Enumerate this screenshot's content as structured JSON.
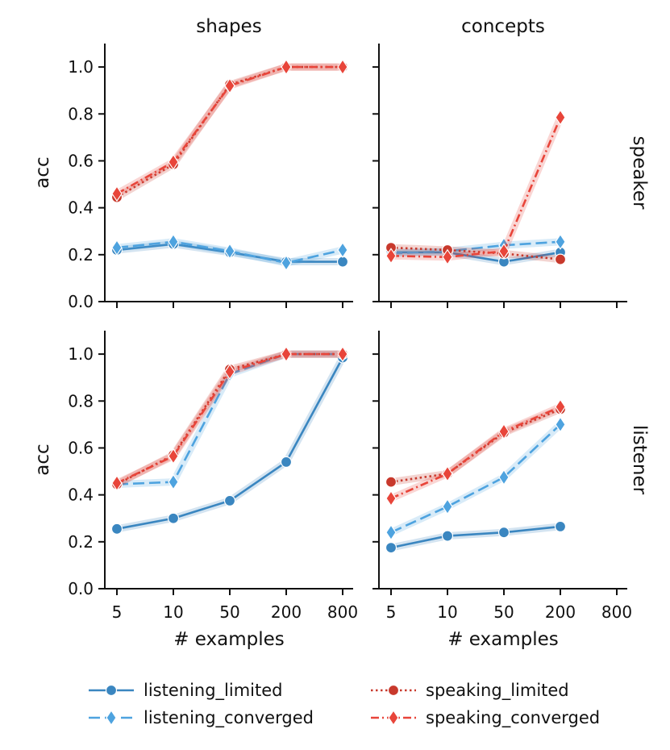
{
  "chart_data": {
    "type": "line",
    "x_scale": "categorical-log",
    "x_ticks": [
      "5",
      "10",
      "50",
      "200",
      "800"
    ],
    "y_ticks": [
      "0.0",
      "0.2",
      "0.4",
      "0.6",
      "0.8",
      "1.0"
    ],
    "ylim": [
      0.0,
      1.1
    ],
    "columns": [
      "shapes",
      "concepts"
    ],
    "rows": [
      "speaker",
      "listener"
    ],
    "xlabel": "# examples",
    "ylabel": "acc",
    "legend": {
      "position": "bottom-center",
      "entries": [
        {
          "series": "listening_limited",
          "label": "listening_limited"
        },
        {
          "series": "listening_converged",
          "label": "listening_converged"
        },
        {
          "series": "speaking_limited",
          "label": "speaking_limited"
        },
        {
          "series": "speaking_converged",
          "label": "speaking_converged"
        }
      ]
    },
    "series_styles": {
      "listening_limited": {
        "color": "#3a86c0",
        "dash": "solid",
        "marker": "circle"
      },
      "listening_converged": {
        "color": "#4ea3df",
        "dash": "dash",
        "marker": "diamond"
      },
      "speaking_limited": {
        "color": "#c8392c",
        "dash": "dot",
        "marker": "circle"
      },
      "speaking_converged": {
        "color": "#e8453a",
        "dash": "dashdot",
        "marker": "diamond"
      }
    },
    "panels": [
      {
        "row": "speaker",
        "column": "shapes",
        "series": [
          {
            "name": "listening_limited",
            "x": [
              "5",
              "10",
              "50",
              "200",
              "800"
            ],
            "values": [
              0.22,
              0.245,
              0.21,
              0.17,
              0.17
            ]
          },
          {
            "name": "listening_converged",
            "x": [
              "5",
              "10",
              "50",
              "200",
              "800"
            ],
            "values": [
              0.23,
              0.255,
              0.215,
              0.165,
              0.22
            ]
          },
          {
            "name": "speaking_limited",
            "x": [
              "5",
              "10",
              "50",
              "200",
              "800"
            ],
            "values": [
              0.445,
              0.585,
              0.925,
              1.0,
              1.0
            ]
          },
          {
            "name": "speaking_converged",
            "x": [
              "5",
              "10",
              "50",
              "200",
              "800"
            ],
            "values": [
              0.46,
              0.595,
              0.92,
              1.0,
              1.0
            ]
          }
        ]
      },
      {
        "row": "speaker",
        "column": "concepts",
        "series": [
          {
            "name": "listening_limited",
            "x": [
              "5",
              "10",
              "50",
              "200"
            ],
            "values": [
              0.21,
              0.21,
              0.17,
              0.21
            ]
          },
          {
            "name": "listening_converged",
            "x": [
              "5",
              "10",
              "50",
              "200"
            ],
            "values": [
              0.205,
              0.215,
              0.24,
              0.255
            ]
          },
          {
            "name": "speaking_limited",
            "x": [
              "5",
              "10",
              "50",
              "200"
            ],
            "values": [
              0.23,
              0.22,
              0.205,
              0.18
            ]
          },
          {
            "name": "speaking_converged",
            "x": [
              "5",
              "10",
              "50",
              "200"
            ],
            "values": [
              0.195,
              0.19,
              0.215,
              0.785
            ]
          }
        ]
      },
      {
        "row": "listener",
        "column": "shapes",
        "series": [
          {
            "name": "listening_limited",
            "x": [
              "5",
              "10",
              "50",
              "200",
              "800"
            ],
            "values": [
              0.255,
              0.3,
              0.375,
              0.54,
              0.985
            ]
          },
          {
            "name": "listening_converged",
            "x": [
              "5",
              "10",
              "50",
              "200",
              "800"
            ],
            "values": [
              0.445,
              0.455,
              0.915,
              1.0,
              1.0
            ]
          },
          {
            "name": "speaking_limited",
            "x": [
              "5",
              "10",
              "50",
              "200",
              "800"
            ],
            "values": [
              0.445,
              0.57,
              0.935,
              1.0,
              1.0
            ]
          },
          {
            "name": "speaking_converged",
            "x": [
              "5",
              "10",
              "50",
              "200",
              "800"
            ],
            "values": [
              0.45,
              0.565,
              0.925,
              1.0,
              1.0
            ]
          }
        ]
      },
      {
        "row": "listener",
        "column": "concepts",
        "series": [
          {
            "name": "listening_limited",
            "x": [
              "5",
              "10",
              "50",
              "200"
            ],
            "values": [
              0.175,
              0.225,
              0.24,
              0.265
            ]
          },
          {
            "name": "listening_converged",
            "x": [
              "5",
              "10",
              "50",
              "200"
            ],
            "values": [
              0.24,
              0.35,
              0.475,
              0.7
            ]
          },
          {
            "name": "speaking_limited",
            "x": [
              "5",
              "10",
              "50",
              "200"
            ],
            "values": [
              0.455,
              0.49,
              0.665,
              0.765
            ]
          },
          {
            "name": "speaking_converged",
            "x": [
              "5",
              "10",
              "50",
              "200"
            ],
            "values": [
              0.385,
              0.49,
              0.67,
              0.775
            ]
          }
        ]
      }
    ]
  }
}
